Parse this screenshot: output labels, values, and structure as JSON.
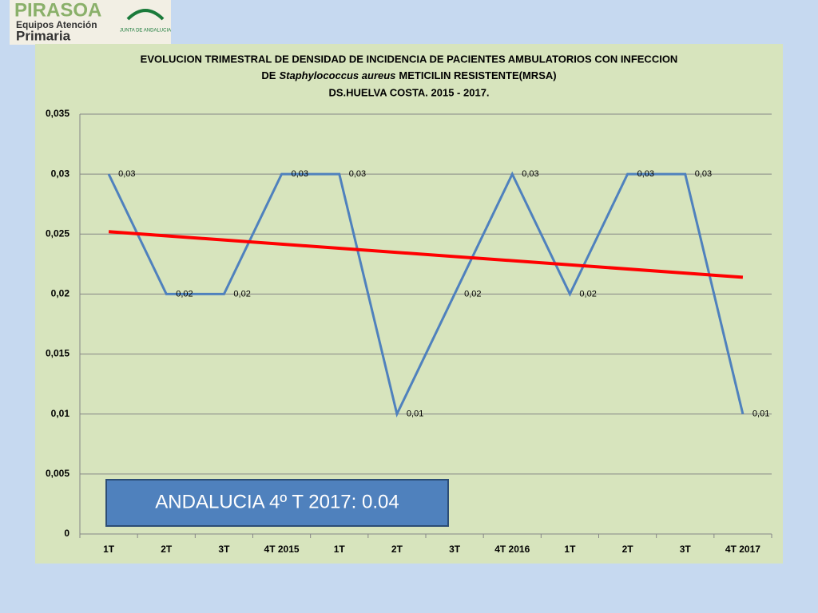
{
  "logo": {
    "name": "PIRASOA",
    "line1": "Equipos Atención",
    "line2": "Primaria",
    "org": "JUNTA DE ANDALUCIA"
  },
  "chart_data": {
    "type": "line",
    "title": {
      "line1": "EVOLUCION TRIMESTRAL DE DENSIDAD DE INCIDENCIA DE PACIENTES AMBULATORIOS CON INFECCION",
      "line2": [
        "DE",
        "Staphylococcus aureus",
        "METICILIN RESISTENTE(MRSA)"
      ],
      "line3": "DS.HUELVA COSTA. 2015 - 2017."
    },
    "categories": [
      "1T",
      "2T",
      "3T",
      "4T 2015",
      "1T",
      "2T",
      "3T",
      "4T 2016",
      "1T",
      "2T",
      "3T",
      "4T 2017"
    ],
    "values": [
      0.03,
      0.02,
      0.02,
      0.03,
      0.03,
      0.01,
      0.02,
      0.03,
      0.02,
      0.03,
      0.03,
      0.01
    ],
    "value_labels": [
      "0,03",
      "0,02",
      "0,02",
      "0,03",
      "0,03",
      "0,01",
      "0,02",
      "0,03",
      "0,02",
      "0,03",
      "0,03",
      "0,01"
    ],
    "color": "#4f81bd",
    "trendline": {
      "color": "#ff0000",
      "values": [
        0.0252,
        0.0214
      ]
    },
    "ylim": [
      0,
      0.035
    ],
    "yticks": [
      0,
      {
        "value": 0.005,
        "label": "0,005"
      },
      {
        "value": 0.01,
        "label": "0,01"
      },
      {
        "value": 0.015,
        "label": "0,015"
      },
      {
        "value": 0.02,
        "label": "0,02"
      },
      {
        "value": 0.025,
        "label": "0,025"
      },
      {
        "value": 0.03,
        "label": "0,03"
      },
      {
        "value": 0.035,
        "label": "0,035"
      }
    ],
    "grid": true,
    "annotation": "ANDALUCIA 4º T 2017: 0.04"
  }
}
